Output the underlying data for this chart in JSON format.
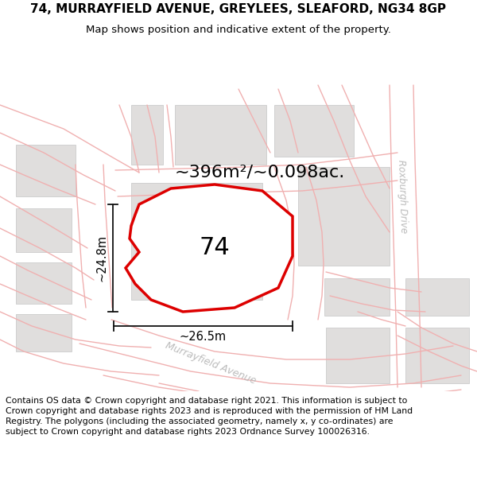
{
  "title_line1": "74, MURRAYFIELD AVENUE, GREYLEES, SLEAFORD, NG34 8GP",
  "title_line2": "Map shows position and indicative extent of the property.",
  "area_label": "~396m²/~0.098ac.",
  "plot_number": "74",
  "dim_height": "~24.8m",
  "dim_width": "~26.5m",
  "street_label": "Murrayfield Avenue",
  "street_label2": "Roxburgh Drive",
  "footer_text": "Contains OS data © Crown copyright and database right 2021. This information is subject to Crown copyright and database rights 2023 and is reproduced with the permission of HM Land Registry. The polygons (including the associated geometry, namely x, y co-ordinates) are subject to Crown copyright and database rights 2023 Ordnance Survey 100026316.",
  "map_bg": "#ffffff",
  "road_line_color": "#f0b0b0",
  "road_fill_color": "#f5f5f5",
  "building_face_color": "#e0dedd",
  "building_edge_color": "#cccccc",
  "plot_outline_color": "#dd0000",
  "dim_line_color": "#111111",
  "street_label_color": "#bbbbbb",
  "title_fontsize": 11,
  "subtitle_fontsize": 9.5,
  "footer_fontsize": 7.8,
  "area_label_fontsize": 16,
  "plot_number_fontsize": 22,
  "dim_fontsize": 10.5,
  "street_fontsize": 9,
  "roxburgh_fontsize": 8.5,
  "road_lw": 1.0,
  "plot_lw": 2.5
}
